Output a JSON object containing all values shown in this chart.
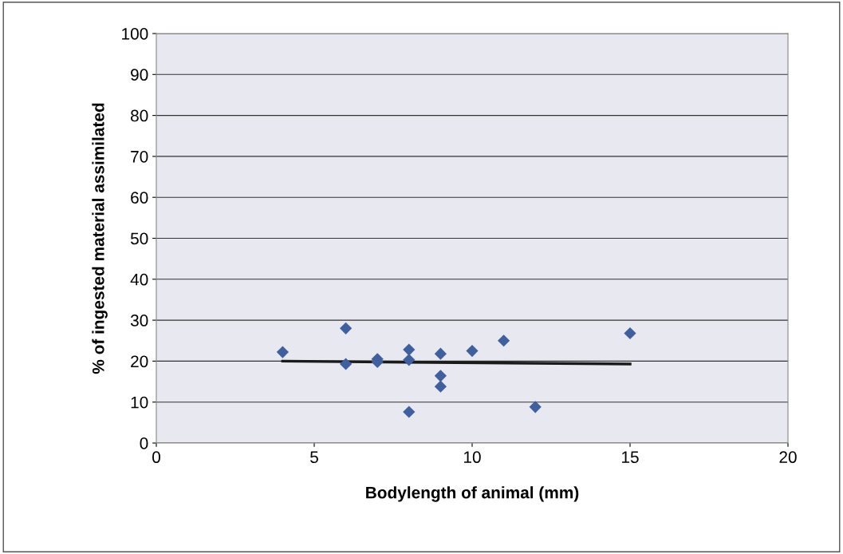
{
  "chart_data": {
    "type": "scatter",
    "xlabel": "Bodylength of animal (mm)",
    "ylabel": "% of ingested material assimilated",
    "xlim": [
      0,
      20
    ],
    "xticks": [
      0,
      5,
      10,
      15,
      20
    ],
    "ylim": [
      0,
      100
    ],
    "yticks": [
      0,
      10,
      20,
      30,
      40,
      50,
      60,
      70,
      80,
      90,
      100
    ],
    "grid": "y",
    "marker": "diamond",
    "series": [
      {
        "color": "#3f5f9f",
        "x": [
          4,
          6,
          6,
          7,
          7,
          8,
          8,
          8,
          9,
          9,
          9,
          10,
          11,
          12,
          15
        ],
        "values": [
          22.2,
          28,
          19.3,
          20.5,
          19.8,
          22.8,
          20.3,
          7.6,
          21.8,
          16.4,
          13.8,
          22.5,
          25,
          8.8,
          26.8
        ]
      },
      {
        "type": "line",
        "marker": "none",
        "color": "#1a1a1a",
        "x": [
          4,
          15
        ],
        "values": [
          20,
          19.3
        ]
      }
    ]
  }
}
